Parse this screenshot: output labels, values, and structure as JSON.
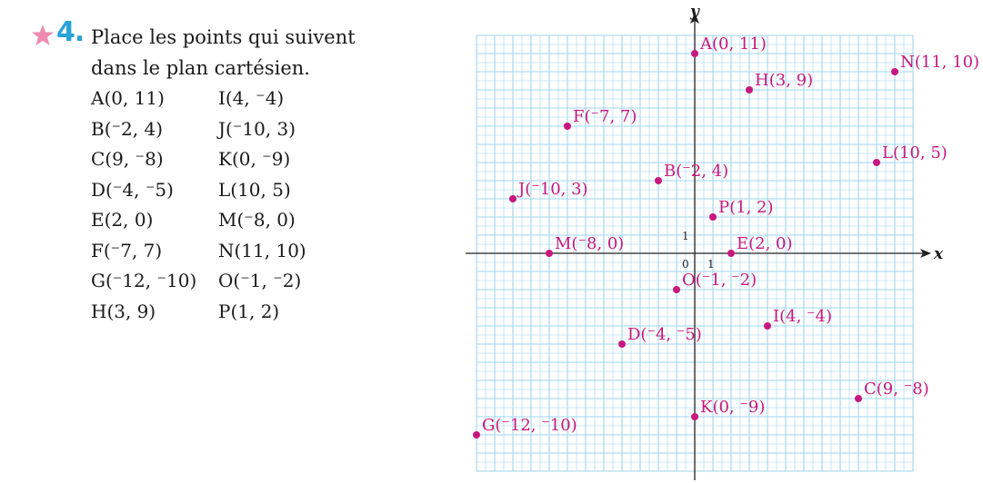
{
  "exercise": {
    "number": "4.",
    "instruction_line1": "Place les points qui suivent",
    "instruction_line2": "dans le plan cartésien.",
    "star_color": "#f08bb0",
    "number_color": "#29a3d6",
    "icon": "star-icon"
  },
  "point_list": {
    "left": [
      "A(0, 11)",
      "B(⁻2, 4)",
      "C(9, ⁻8)",
      "D(⁻4, ⁻5)",
      "E(2, 0)",
      "F(⁻7, 7)",
      "G(⁻12, ⁻10)",
      "H(3, 9)"
    ],
    "right": [
      "I(4, ⁻4)",
      "J(⁻10, 3)",
      "K(0, ⁻9)",
      "L(10, 5)",
      "M(⁻8, 0)",
      "N(11, 10)",
      "O(⁻1, ⁻2)",
      "P(1, 2)"
    ]
  },
  "chart_data": {
    "type": "scatter",
    "xlabel": "x",
    "ylabel": "y",
    "xlim": [
      -12,
      11
    ],
    "ylim": [
      -12,
      12
    ],
    "grid": true,
    "origin_label": "0",
    "x_tick_label": "1",
    "y_tick_label": "1",
    "point_color": "#c8177d",
    "grid_color": "#9fd6ee",
    "points": [
      {
        "name": "A",
        "x": 0,
        "y": 11,
        "label": "A(0, 11)"
      },
      {
        "name": "B",
        "x": -2,
        "y": 4,
        "label": "B(⁻2, 4)"
      },
      {
        "name": "C",
        "x": 9,
        "y": -8,
        "label": "C(9, ⁻8)"
      },
      {
        "name": "D",
        "x": -4,
        "y": -5,
        "label": "D(⁻4, ⁻5)"
      },
      {
        "name": "E",
        "x": 2,
        "y": 0,
        "label": "E(2, 0)"
      },
      {
        "name": "F",
        "x": -7,
        "y": 7,
        "label": "F(⁻7, 7)"
      },
      {
        "name": "G",
        "x": -12,
        "y": -10,
        "label": "G(⁻12, ⁻10)"
      },
      {
        "name": "H",
        "x": 3,
        "y": 9,
        "label": "H(3, 9)"
      },
      {
        "name": "I",
        "x": 4,
        "y": -4,
        "label": "I(4, ⁻4)"
      },
      {
        "name": "J",
        "x": -10,
        "y": 3,
        "label": "J(⁻10, 3)"
      },
      {
        "name": "K",
        "x": 0,
        "y": -9,
        "label": "K(0, ⁻9)"
      },
      {
        "name": "L",
        "x": 10,
        "y": 5,
        "label": "L(10, 5)"
      },
      {
        "name": "M",
        "x": -8,
        "y": 0,
        "label": "M(⁻8, 0)"
      },
      {
        "name": "N",
        "x": 11,
        "y": 10,
        "label": "N(11, 10)"
      },
      {
        "name": "O",
        "x": -1,
        "y": -2,
        "label": "O(⁻1, ⁻2)"
      },
      {
        "name": "P",
        "x": 1,
        "y": 2,
        "label": "P(1, 2)"
      }
    ]
  }
}
